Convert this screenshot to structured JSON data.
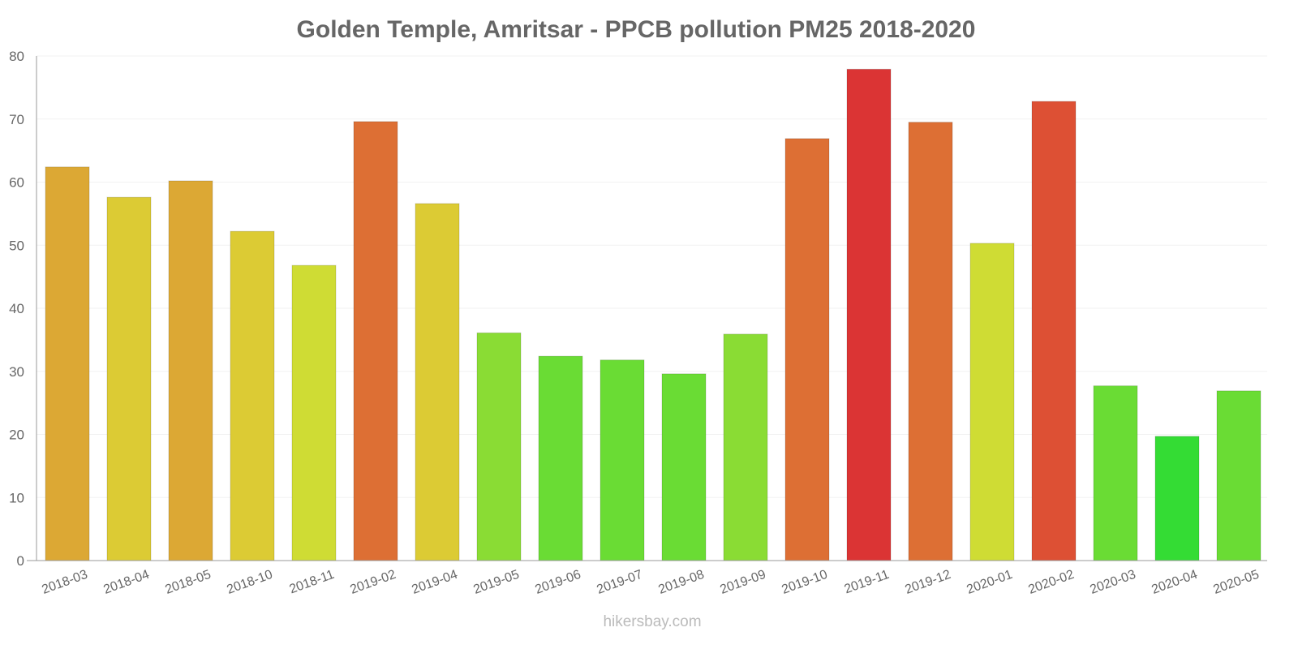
{
  "chart_data": {
    "type": "bar",
    "title": "Golden Temple, Amritsar - PPCB pollution PM25 2018-2020",
    "xlabel": "",
    "ylabel": "",
    "ylim": [
      0,
      80
    ],
    "yticks": [
      0,
      10,
      20,
      30,
      40,
      50,
      60,
      70,
      80
    ],
    "grid": true,
    "categories": [
      "2018-03",
      "2018-04",
      "2018-05",
      "2018-10",
      "2018-11",
      "2019-02",
      "2019-04",
      "2019-05",
      "2019-06",
      "2019-07",
      "2019-08",
      "2019-09",
      "2019-10",
      "2019-11",
      "2019-12",
      "2020-01",
      "2020-02",
      "2020-03",
      "2020-04",
      "2020-05"
    ],
    "values": [
      62.4,
      57.6,
      60.2,
      52.2,
      46.8,
      69.6,
      56.6,
      36.1,
      32.4,
      31.8,
      29.6,
      35.9,
      66.9,
      77.9,
      69.5,
      50.3,
      72.8,
      27.7,
      19.7,
      26.9
    ],
    "colors": [
      "#dca834",
      "#dccb34",
      "#dca834",
      "#dccb34",
      "#cfdc34",
      "#dd6f34",
      "#dccb34",
      "#8adc34",
      "#6adc34",
      "#6adc34",
      "#6adc34",
      "#8adc34",
      "#dd6f34",
      "#db3434",
      "#dd6f34",
      "#cfdc34",
      "#dd5034",
      "#6adc34",
      "#34dc34",
      "#6adc34"
    ]
  },
  "watermark": "hikersbay.com"
}
